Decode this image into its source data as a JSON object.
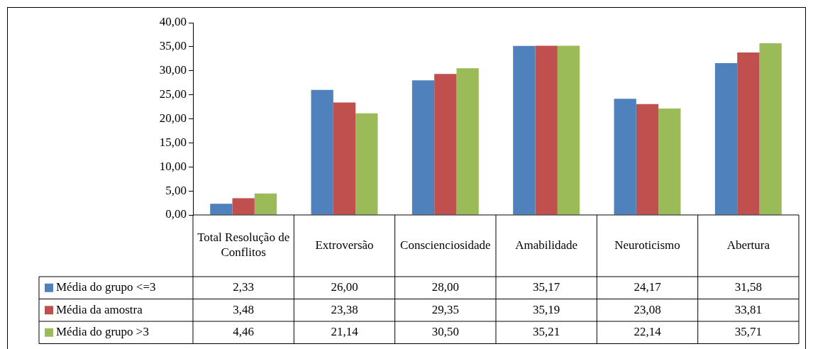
{
  "chart_data": {
    "type": "bar",
    "categories": [
      "Total Resolução de Conflitos",
      "Extroversão",
      "Conscienciosidade",
      "Amabilidade",
      "Neuroticismo",
      "Abertura"
    ],
    "series": [
      {
        "name": "Média do grupo <=3",
        "color": "#4f81bd",
        "values": [
          2.33,
          26.0,
          28.0,
          35.17,
          24.17,
          31.58
        ],
        "value_labels": [
          "2,33",
          "26,00",
          "28,00",
          "35,17",
          "24,17",
          "31,58"
        ]
      },
      {
        "name": "Média da amostra",
        "color": "#c0504d",
        "values": [
          3.48,
          23.38,
          29.35,
          35.19,
          23.08,
          33.81
        ],
        "value_labels": [
          "3,48",
          "23,38",
          "29,35",
          "35,19",
          "23,08",
          "33,81"
        ]
      },
      {
        "name": "Média do grupo >3",
        "color": "#9bbb59",
        "values": [
          4.46,
          21.14,
          30.5,
          35.21,
          22.14,
          35.71
        ],
        "value_labels": [
          "4,46",
          "21,14",
          "30,50",
          "35,21",
          "22,14",
          "35,71"
        ]
      }
    ],
    "ylim": [
      0,
      40
    ],
    "yticks": [
      {
        "value": 0,
        "label": "0,00"
      },
      {
        "value": 5,
        "label": "5,00"
      },
      {
        "value": 10,
        "label": "10,00"
      },
      {
        "value": 15,
        "label": "15,00"
      },
      {
        "value": 20,
        "label": "20,00"
      },
      {
        "value": 25,
        "label": "25,00"
      },
      {
        "value": 30,
        "label": "30,00"
      },
      {
        "value": 35,
        "label": "35,00"
      },
      {
        "value": 40,
        "label": "40,00"
      }
    ],
    "grid": false,
    "legend": "bottom left"
  }
}
